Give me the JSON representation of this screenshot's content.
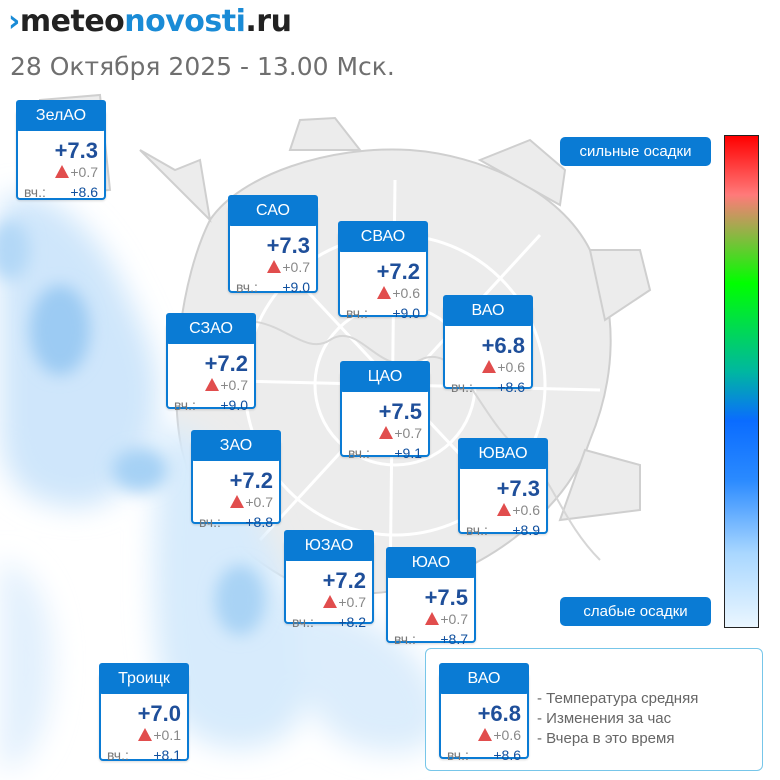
{
  "header": {
    "logo_prefix": "meteo",
    "logo_brand": "novosti",
    "logo_suffix": ".ru",
    "date_time": "28 Октября 2025 - 13.00 Мск."
  },
  "legend": {
    "strong_label": "сильные осадки",
    "weak_label": "слабые осадки"
  },
  "districts": [
    {
      "name": "ЗелАО",
      "temp": "+7.3",
      "delta": "+0.7",
      "yesterday_label": "вч.:",
      "yesterday": "+8.6"
    },
    {
      "name": "САО",
      "temp": "+7.3",
      "delta": "+0.7",
      "yesterday_label": "вч.:",
      "yesterday": "+9.0"
    },
    {
      "name": "СВАО",
      "temp": "+7.2",
      "delta": "+0.6",
      "yesterday_label": "вч.:",
      "yesterday": "+9.0"
    },
    {
      "name": "ВАО",
      "temp": "+6.8",
      "delta": "+0.6",
      "yesterday_label": "вч.:",
      "yesterday": "+8.6"
    },
    {
      "name": "СЗАО",
      "temp": "+7.2",
      "delta": "+0.7",
      "yesterday_label": "вч.:",
      "yesterday": "+9.0"
    },
    {
      "name": "ЦАО",
      "temp": "+7.5",
      "delta": "+0.7",
      "yesterday_label": "вч.:",
      "yesterday": "+9.1"
    },
    {
      "name": "ЗАО",
      "temp": "+7.2",
      "delta": "+0.7",
      "yesterday_label": "вч.:",
      "yesterday": "+8.8"
    },
    {
      "name": "ЮВАО",
      "temp": "+7.3",
      "delta": "+0.6",
      "yesterday_label": "вч.:",
      "yesterday": "+8.9"
    },
    {
      "name": "ЮЗАО",
      "temp": "+7.2",
      "delta": "+0.7",
      "yesterday_label": "вч.:",
      "yesterday": "+8.2"
    },
    {
      "name": "ЮАО",
      "temp": "+7.5",
      "delta": "+0.7",
      "yesterday_label": "вч.:",
      "yesterday": "+8.7"
    },
    {
      "name": "Троицк",
      "temp": "+7.0",
      "delta": "+0.1",
      "yesterday_label": "вч.:",
      "yesterday": "+8.1"
    }
  ],
  "key": {
    "example": {
      "name": "ВАО",
      "temp": "+6.8",
      "delta": "+0.6",
      "yesterday_label": "вч.:",
      "yesterday": "+8.6"
    },
    "items": [
      "- Температура средняя",
      "- Изменения за час",
      "- Вчера в это время"
    ]
  },
  "colors": {
    "accent": "#0a7bd4",
    "temp_text": "#1f4f9a",
    "trend_up": "#e14d4d",
    "precip_light": "#cfe6fb",
    "precip_mid": "#8fc3f2"
  },
  "icons": [
    "trend-up-icon",
    "logo-mark-icon"
  ]
}
